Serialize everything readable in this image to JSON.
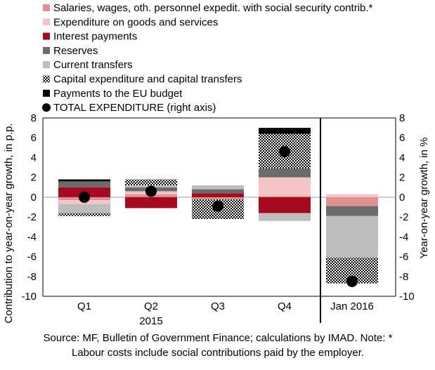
{
  "chart_data": {
    "type": "bar",
    "stacked": true,
    "categories": [
      "Q1",
      "Q2",
      "Q3",
      "Q4",
      "Jan 2016"
    ],
    "year_label": "2015",
    "ylabel_left": "Contribution to year-on-year growth, in p.p.",
    "ylabel_right": "Year-on-year growth, in %",
    "ylim_left": [
      -10,
      8
    ],
    "ylim_right": [
      -10,
      8
    ],
    "y_ticks": [
      8,
      6,
      4,
      2,
      0,
      -2,
      -4,
      -6,
      -8,
      -10
    ],
    "legend_position": "top-left",
    "series": [
      {
        "name": "Salaries, wages, oth. personnel expedit. with social security contrib.*",
        "color": "#e09090",
        "pattern": "solid",
        "values": [
          -0.3,
          0.3,
          -0.2,
          0.1,
          -0.9
        ]
      },
      {
        "name": "Expenditure on goods and services",
        "color": "#f2c6c6",
        "pattern": "solid",
        "values": [
          -0.4,
          0.3,
          0.0,
          1.9,
          0.3
        ]
      },
      {
        "name": "Interest payments",
        "color": "#a50a1f",
        "pattern": "solid",
        "values": [
          1.0,
          -1.1,
          0.4,
          -1.6,
          0.0
        ]
      },
      {
        "name": "Reserves",
        "color": "#6b6b6b",
        "pattern": "solid",
        "values": [
          0.6,
          0.4,
          0.4,
          0.9,
          -1.0
        ]
      },
      {
        "name": "Current transfers",
        "color": "#bdbdbd",
        "pattern": "solid",
        "values": [
          -0.9,
          0.2,
          0.4,
          -0.8,
          -4.2
        ]
      },
      {
        "name": "Capital expenditure and capital transfers",
        "color": "#000000",
        "pattern": "dots",
        "values": [
          -0.3,
          0.6,
          -2.0,
          3.5,
          -2.6
        ]
      },
      {
        "name": "Payments to the EU budget",
        "color": "#000000",
        "pattern": "solid",
        "values": [
          0.2,
          0.0,
          0.0,
          0.6,
          0.0
        ]
      }
    ],
    "total": {
      "name": "TOTAL EXPENDITURE (right axis)",
      "values": [
        0.0,
        0.6,
        -0.9,
        4.6,
        -8.5
      ]
    }
  },
  "footnote": {
    "line1": "Source: MF, Bulletin of Government Finance; calculations by IMAD. Note: *",
    "line2": "Labour costs include social contributions paid by the employer."
  }
}
